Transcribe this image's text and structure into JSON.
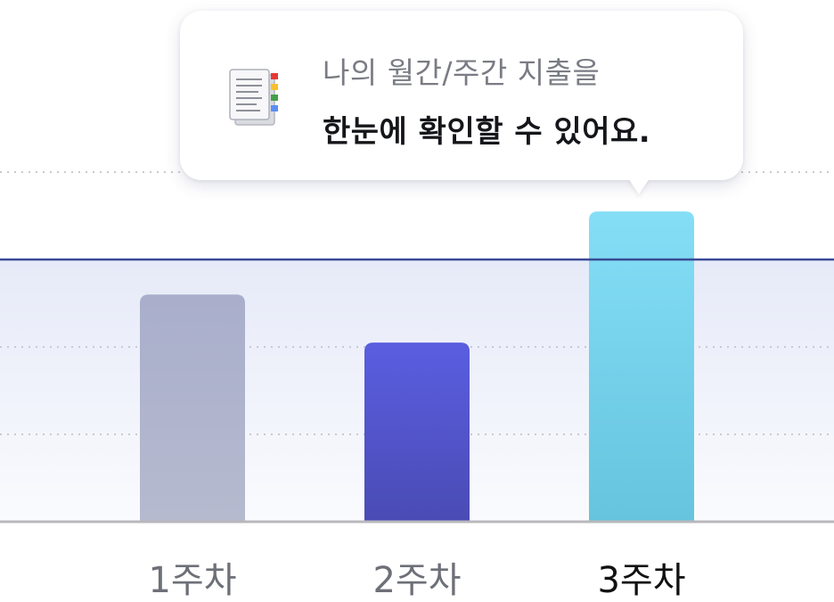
{
  "tooltip": {
    "line1": "나의 월간/주간 지출을",
    "line2": "한눈에 확인할 수 있어요.",
    "icon": "document-list-icon"
  },
  "colors": {
    "week1_bar": "#aeb3cd",
    "week2_bar": "#5459d8",
    "week3_bar": "#78d2ee",
    "average_line": "#3a4a96",
    "average_band": "#eef1fb",
    "baseline": "#b8b8bc",
    "label_default": "#6e7078",
    "label_active": "#111111"
  },
  "chart_data": {
    "type": "bar",
    "categories": [
      "1주차",
      "2주차",
      "3주차"
    ],
    "values": [
      52,
      41,
      71
    ],
    "reference_line": 60,
    "ylim": [
      0,
      80
    ],
    "grid": "dotted horizontal",
    "highlighted_category": "3주차"
  }
}
